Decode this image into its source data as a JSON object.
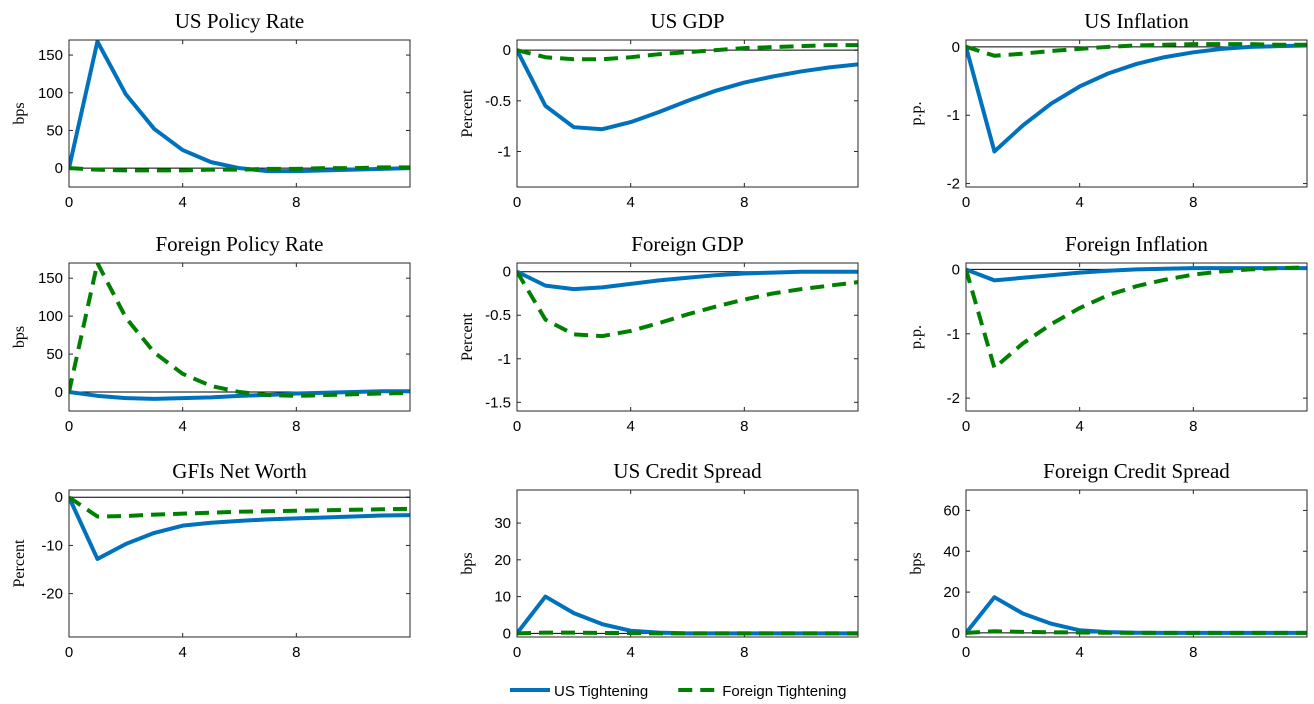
{
  "chart_data": [
    {
      "type": "line",
      "title": "US Policy Rate",
      "y_label": "bps",
      "x": [
        0,
        1,
        2,
        3,
        4,
        5,
        6,
        7,
        8,
        9,
        10,
        11,
        12
      ],
      "xlim": [
        0,
        12
      ],
      "xticks": [
        0,
        4,
        8
      ],
      "ylim": [
        -25,
        170
      ],
      "yticks": [
        0,
        50,
        100,
        150
      ],
      "series": [
        {
          "name": "US Tightening",
          "color": "#0072bd",
          "values": [
            0,
            168,
            98,
            52,
            24,
            8,
            0,
            -4,
            -4,
            -3,
            -2,
            -1,
            0
          ]
        },
        {
          "name": "Foreign Tightening",
          "color": "#008000",
          "dashed": true,
          "values": [
            0,
            -2,
            -3,
            -3,
            -3,
            -2,
            -2,
            -1,
            -1,
            0,
            0,
            1,
            1
          ]
        }
      ]
    },
    {
      "type": "line",
      "title": "US GDP",
      "y_label": "Percent",
      "x": [
        0,
        1,
        2,
        3,
        4,
        5,
        6,
        7,
        8,
        9,
        10,
        11,
        12
      ],
      "xlim": [
        0,
        12
      ],
      "xticks": [
        0,
        4,
        8
      ],
      "ylim": [
        -1.35,
        0.1
      ],
      "yticks": [
        0,
        -0.5,
        -1
      ],
      "series": [
        {
          "color": "#0072bd",
          "values": [
            0,
            -0.55,
            -0.76,
            -0.78,
            -0.71,
            -0.61,
            -0.5,
            -0.4,
            -0.32,
            -0.26,
            -0.21,
            -0.17,
            -0.14
          ]
        },
        {
          "color": "#008000",
          "dashed": true,
          "values": [
            0,
            -0.07,
            -0.09,
            -0.09,
            -0.07,
            -0.04,
            -0.02,
            0,
            0.02,
            0.03,
            0.04,
            0.05,
            0.05
          ]
        }
      ]
    },
    {
      "type": "line",
      "title": "US Inflation",
      "y_label": "p.p.",
      "x": [
        0,
        1,
        2,
        3,
        4,
        5,
        6,
        7,
        8,
        9,
        10,
        11,
        12
      ],
      "xlim": [
        0,
        12
      ],
      "xticks": [
        0,
        4,
        8
      ],
      "ylim": [
        -2.05,
        0.1
      ],
      "yticks": [
        0,
        -1,
        -2
      ],
      "series": [
        {
          "color": "#0072bd",
          "values": [
            0,
            -1.53,
            -1.15,
            -0.83,
            -0.58,
            -0.39,
            -0.25,
            -0.15,
            -0.08,
            -0.03,
            0,
            0.01,
            0.02
          ]
        },
        {
          "color": "#008000",
          "dashed": true,
          "values": [
            0,
            -0.13,
            -0.1,
            -0.06,
            -0.03,
            0,
            0.02,
            0.03,
            0.04,
            0.04,
            0.04,
            0.03,
            0.03
          ]
        }
      ]
    },
    {
      "type": "line",
      "title": "Foreign Policy Rate",
      "y_label": "bps",
      "x": [
        0,
        1,
        2,
        3,
        4,
        5,
        6,
        7,
        8,
        9,
        10,
        11,
        12
      ],
      "xlim": [
        0,
        12
      ],
      "xticks": [
        0,
        4,
        8
      ],
      "ylim": [
        -25,
        170
      ],
      "yticks": [
        0,
        50,
        100,
        150
      ],
      "series": [
        {
          "color": "#0072bd",
          "values": [
            0,
            -5,
            -8,
            -9,
            -8,
            -7,
            -5,
            -4,
            -2,
            -1,
            0,
            1,
            1
          ]
        },
        {
          "color": "#008000",
          "dashed": true,
          "values": [
            0,
            170,
            98,
            52,
            24,
            8,
            0,
            -4,
            -5,
            -4,
            -3,
            -2,
            -1
          ]
        }
      ]
    },
    {
      "type": "line",
      "title": "Foreign GDP",
      "y_label": "Percent",
      "x": [
        0,
        1,
        2,
        3,
        4,
        5,
        6,
        7,
        8,
        9,
        10,
        11,
        12
      ],
      "xlim": [
        0,
        12
      ],
      "xticks": [
        0,
        4,
        8
      ],
      "ylim": [
        -1.6,
        0.1
      ],
      "yticks": [
        0,
        -0.5,
        -1,
        -1.5
      ],
      "series": [
        {
          "color": "#0072bd",
          "values": [
            0,
            -0.16,
            -0.2,
            -0.18,
            -0.14,
            -0.1,
            -0.07,
            -0.04,
            -0.02,
            -0.01,
            0,
            0,
            0
          ]
        },
        {
          "color": "#008000",
          "dashed": true,
          "values": [
            0,
            -0.55,
            -0.72,
            -0.74,
            -0.68,
            -0.59,
            -0.49,
            -0.4,
            -0.32,
            -0.25,
            -0.2,
            -0.16,
            -0.12
          ]
        }
      ]
    },
    {
      "type": "line",
      "title": "Foreign Inflation",
      "y_label": "p.p.",
      "x": [
        0,
        1,
        2,
        3,
        4,
        5,
        6,
        7,
        8,
        9,
        10,
        11,
        12
      ],
      "xlim": [
        0,
        12
      ],
      "xticks": [
        0,
        4,
        8
      ],
      "ylim": [
        -2.2,
        0.1
      ],
      "yticks": [
        0,
        -1,
        -2
      ],
      "series": [
        {
          "color": "#0072bd",
          "values": [
            0,
            -0.17,
            -0.13,
            -0.09,
            -0.05,
            -0.02,
            0,
            0.01,
            0.02,
            0.02,
            0.02,
            0.02,
            0.02
          ]
        },
        {
          "color": "#008000",
          "dashed": true,
          "values": [
            0,
            -1.53,
            -1.15,
            -0.85,
            -0.6,
            -0.4,
            -0.26,
            -0.16,
            -0.08,
            -0.03,
            0,
            0.02,
            0.03
          ]
        }
      ]
    },
    {
      "type": "line",
      "title": "GFIs Net Worth",
      "y_label": "Percent",
      "x": [
        0,
        1,
        2,
        3,
        4,
        5,
        6,
        7,
        8,
        9,
        10,
        11,
        12
      ],
      "xlim": [
        0,
        12
      ],
      "xticks": [
        0,
        4,
        8
      ],
      "ylim": [
        -29,
        1.5
      ],
      "yticks": [
        0,
        -10,
        -20
      ],
      "series": [
        {
          "color": "#0072bd",
          "values": [
            0,
            -12.8,
            -9.7,
            -7.4,
            -5.9,
            -5.3,
            -4.9,
            -4.6,
            -4.4,
            -4.2,
            -4,
            -3.8,
            -3.7
          ]
        },
        {
          "color": "#008000",
          "dashed": true,
          "values": [
            0,
            -4,
            -3.9,
            -3.6,
            -3.4,
            -3.2,
            -3,
            -2.9,
            -2.8,
            -2.7,
            -2.6,
            -2.5,
            -2.4
          ]
        }
      ]
    },
    {
      "type": "line",
      "title": "US Credit Spread",
      "y_label": "bps",
      "x": [
        0,
        1,
        2,
        3,
        4,
        5,
        6,
        7,
        8,
        9,
        10,
        11,
        12
      ],
      "xlim": [
        0,
        12
      ],
      "xticks": [
        0,
        4,
        8
      ],
      "ylim": [
        -1,
        39
      ],
      "yticks": [
        0,
        10,
        20,
        30
      ],
      "series": [
        {
          "color": "#0072bd",
          "values": [
            0,
            10,
            5.5,
            2.5,
            0.7,
            0.2,
            0,
            0,
            0,
            0,
            0,
            0,
            0
          ]
        },
        {
          "color": "#008000",
          "dashed": true,
          "values": [
            0,
            0.2,
            0.2,
            0.1,
            0.1,
            0,
            0,
            0,
            0,
            0,
            0,
            0,
            0
          ]
        }
      ]
    },
    {
      "type": "line",
      "title": "Foreign Credit Spread",
      "y_label": "bps",
      "x": [
        0,
        1,
        2,
        3,
        4,
        5,
        6,
        7,
        8,
        9,
        10,
        11,
        12
      ],
      "xlim": [
        0,
        12
      ],
      "xticks": [
        0,
        4,
        8
      ],
      "ylim": [
        -2,
        70
      ],
      "yticks": [
        0,
        20,
        40,
        60
      ],
      "series": [
        {
          "color": "#0072bd",
          "values": [
            0,
            17.5,
            9.5,
            4.5,
            1.3,
            0.4,
            0.1,
            0,
            0,
            0,
            0,
            0,
            0
          ]
        },
        {
          "color": "#008000",
          "dashed": true,
          "values": [
            0,
            0.8,
            0.5,
            0.3,
            0.2,
            0.1,
            0,
            0,
            0,
            0,
            0,
            0,
            0
          ]
        }
      ]
    }
  ]
}
